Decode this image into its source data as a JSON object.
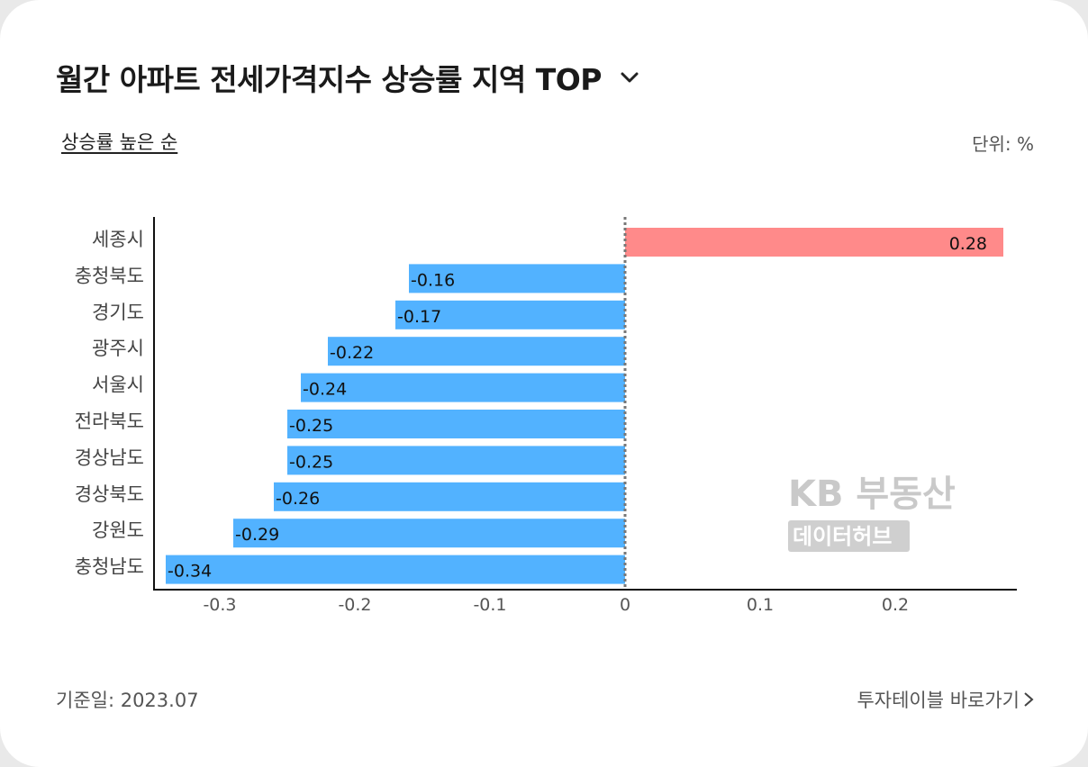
{
  "header": {
    "title": "월간 아파트 전세가격지수 상승률 지역 TOP",
    "dropdown_icon": "chevron-down-icon"
  },
  "controls": {
    "sort_label": "상승률 높은 순",
    "unit_label": "단위: %"
  },
  "watermark": {
    "main": "KB 부동산",
    "sub": "데이터허브"
  },
  "footer": {
    "base_date": "기준일: 2023.07",
    "link_label": "투자테이블 바로가기",
    "link_icon": "chevron-right-icon"
  },
  "colors": {
    "positive": "#ff8a8a",
    "negative": "#52b2ff"
  },
  "chart_data": {
    "type": "bar",
    "orientation": "horizontal",
    "categories": [
      "세종시",
      "충청북도",
      "경기도",
      "광주시",
      "서울시",
      "전라북도",
      "경상남도",
      "경상북도",
      "강원도",
      "충청남도"
    ],
    "values": [
      0.28,
      -0.16,
      -0.17,
      -0.22,
      -0.24,
      -0.25,
      -0.25,
      -0.26,
      -0.29,
      -0.34
    ],
    "value_labels": [
      "0.28",
      "-0.16",
      "-0.17",
      "-0.22",
      "-0.24",
      "-0.25",
      "-0.25",
      "-0.26",
      "-0.29",
      "-0.34"
    ],
    "xticks": [
      -0.3,
      -0.2,
      -0.1,
      0,
      0.1,
      0.2
    ],
    "xtick_labels": [
      "-0.3",
      "-0.2",
      "-0.1",
      "0",
      "0.1",
      "0.2"
    ],
    "xlim": [
      -0.34,
      0.29
    ],
    "zero_line": "dotted"
  }
}
